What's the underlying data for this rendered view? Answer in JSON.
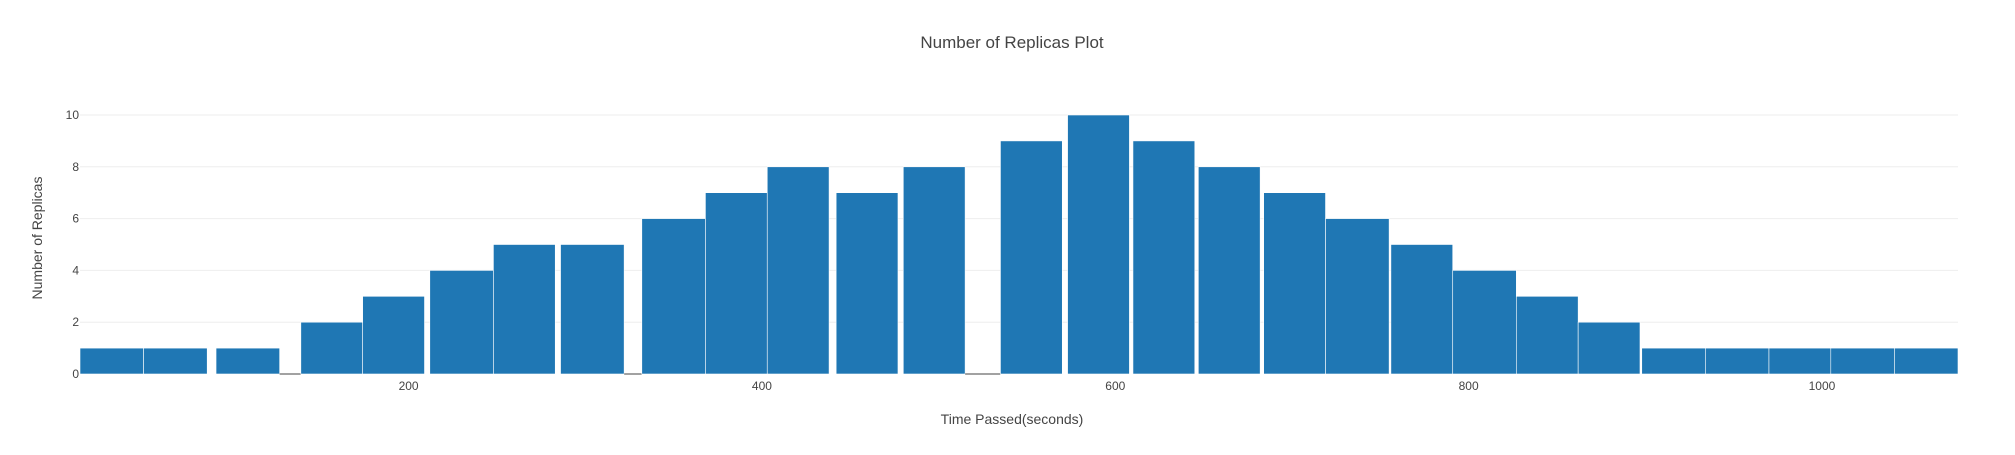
{
  "chart_data": {
    "type": "bar",
    "title": "Number of Replicas Plot",
    "xlabel": "Time Passed(seconds)",
    "ylabel": "Number of Replicas",
    "x_ticks": [
      200,
      400,
      600,
      800,
      1000
    ],
    "y_ticks": [
      0,
      2,
      4,
      6,
      8,
      10
    ],
    "xlim": [
      14,
      1077
    ],
    "ylim": [
      0,
      10
    ],
    "grid": true,
    "bar_color": "#1f77b4",
    "bars": [
      {
        "x0": 14,
        "x1": 50,
        "value": 1
      },
      {
        "x0": 50,
        "x1": 86,
        "value": 1
      },
      {
        "x0": 91,
        "x1": 127,
        "value": 1
      },
      {
        "x0": 127,
        "x1": 139,
        "value": 0
      },
      {
        "x0": 139,
        "x1": 174,
        "value": 2
      },
      {
        "x0": 174,
        "x1": 209,
        "value": 3
      },
      {
        "x0": 212,
        "x1": 248,
        "value": 4
      },
      {
        "x0": 248,
        "x1": 283,
        "value": 5
      },
      {
        "x0": 286,
        "x1": 322,
        "value": 5
      },
      {
        "x0": 322,
        "x1": 332,
        "value": 0
      },
      {
        "x0": 332,
        "x1": 368,
        "value": 6
      },
      {
        "x0": 368,
        "x1": 403,
        "value": 7
      },
      {
        "x0": 403,
        "x1": 438,
        "value": 8
      },
      {
        "x0": 442,
        "x1": 477,
        "value": 7
      },
      {
        "x0": 480,
        "x1": 515,
        "value": 8
      },
      {
        "x0": 515,
        "x1": 535,
        "value": 0
      },
      {
        "x0": 535,
        "x1": 570,
        "value": 9
      },
      {
        "x0": 573,
        "x1": 608,
        "value": 10
      },
      {
        "x0": 610,
        "x1": 645,
        "value": 9
      },
      {
        "x0": 647,
        "x1": 682,
        "value": 8
      },
      {
        "x0": 684,
        "x1": 719,
        "value": 7
      },
      {
        "x0": 719,
        "x1": 755,
        "value": 6
      },
      {
        "x0": 756,
        "x1": 791,
        "value": 5
      },
      {
        "x0": 791,
        "x1": 827,
        "value": 4
      },
      {
        "x0": 827,
        "x1": 862,
        "value": 3
      },
      {
        "x0": 862,
        "x1": 897,
        "value": 2
      },
      {
        "x0": 898,
        "x1": 934,
        "value": 1
      },
      {
        "x0": 934,
        "x1": 970,
        "value": 1
      },
      {
        "x0": 970,
        "x1": 1005,
        "value": 1
      },
      {
        "x0": 1005,
        "x1": 1041,
        "value": 1
      },
      {
        "x0": 1041,
        "x1": 1077,
        "value": 1
      }
    ]
  }
}
